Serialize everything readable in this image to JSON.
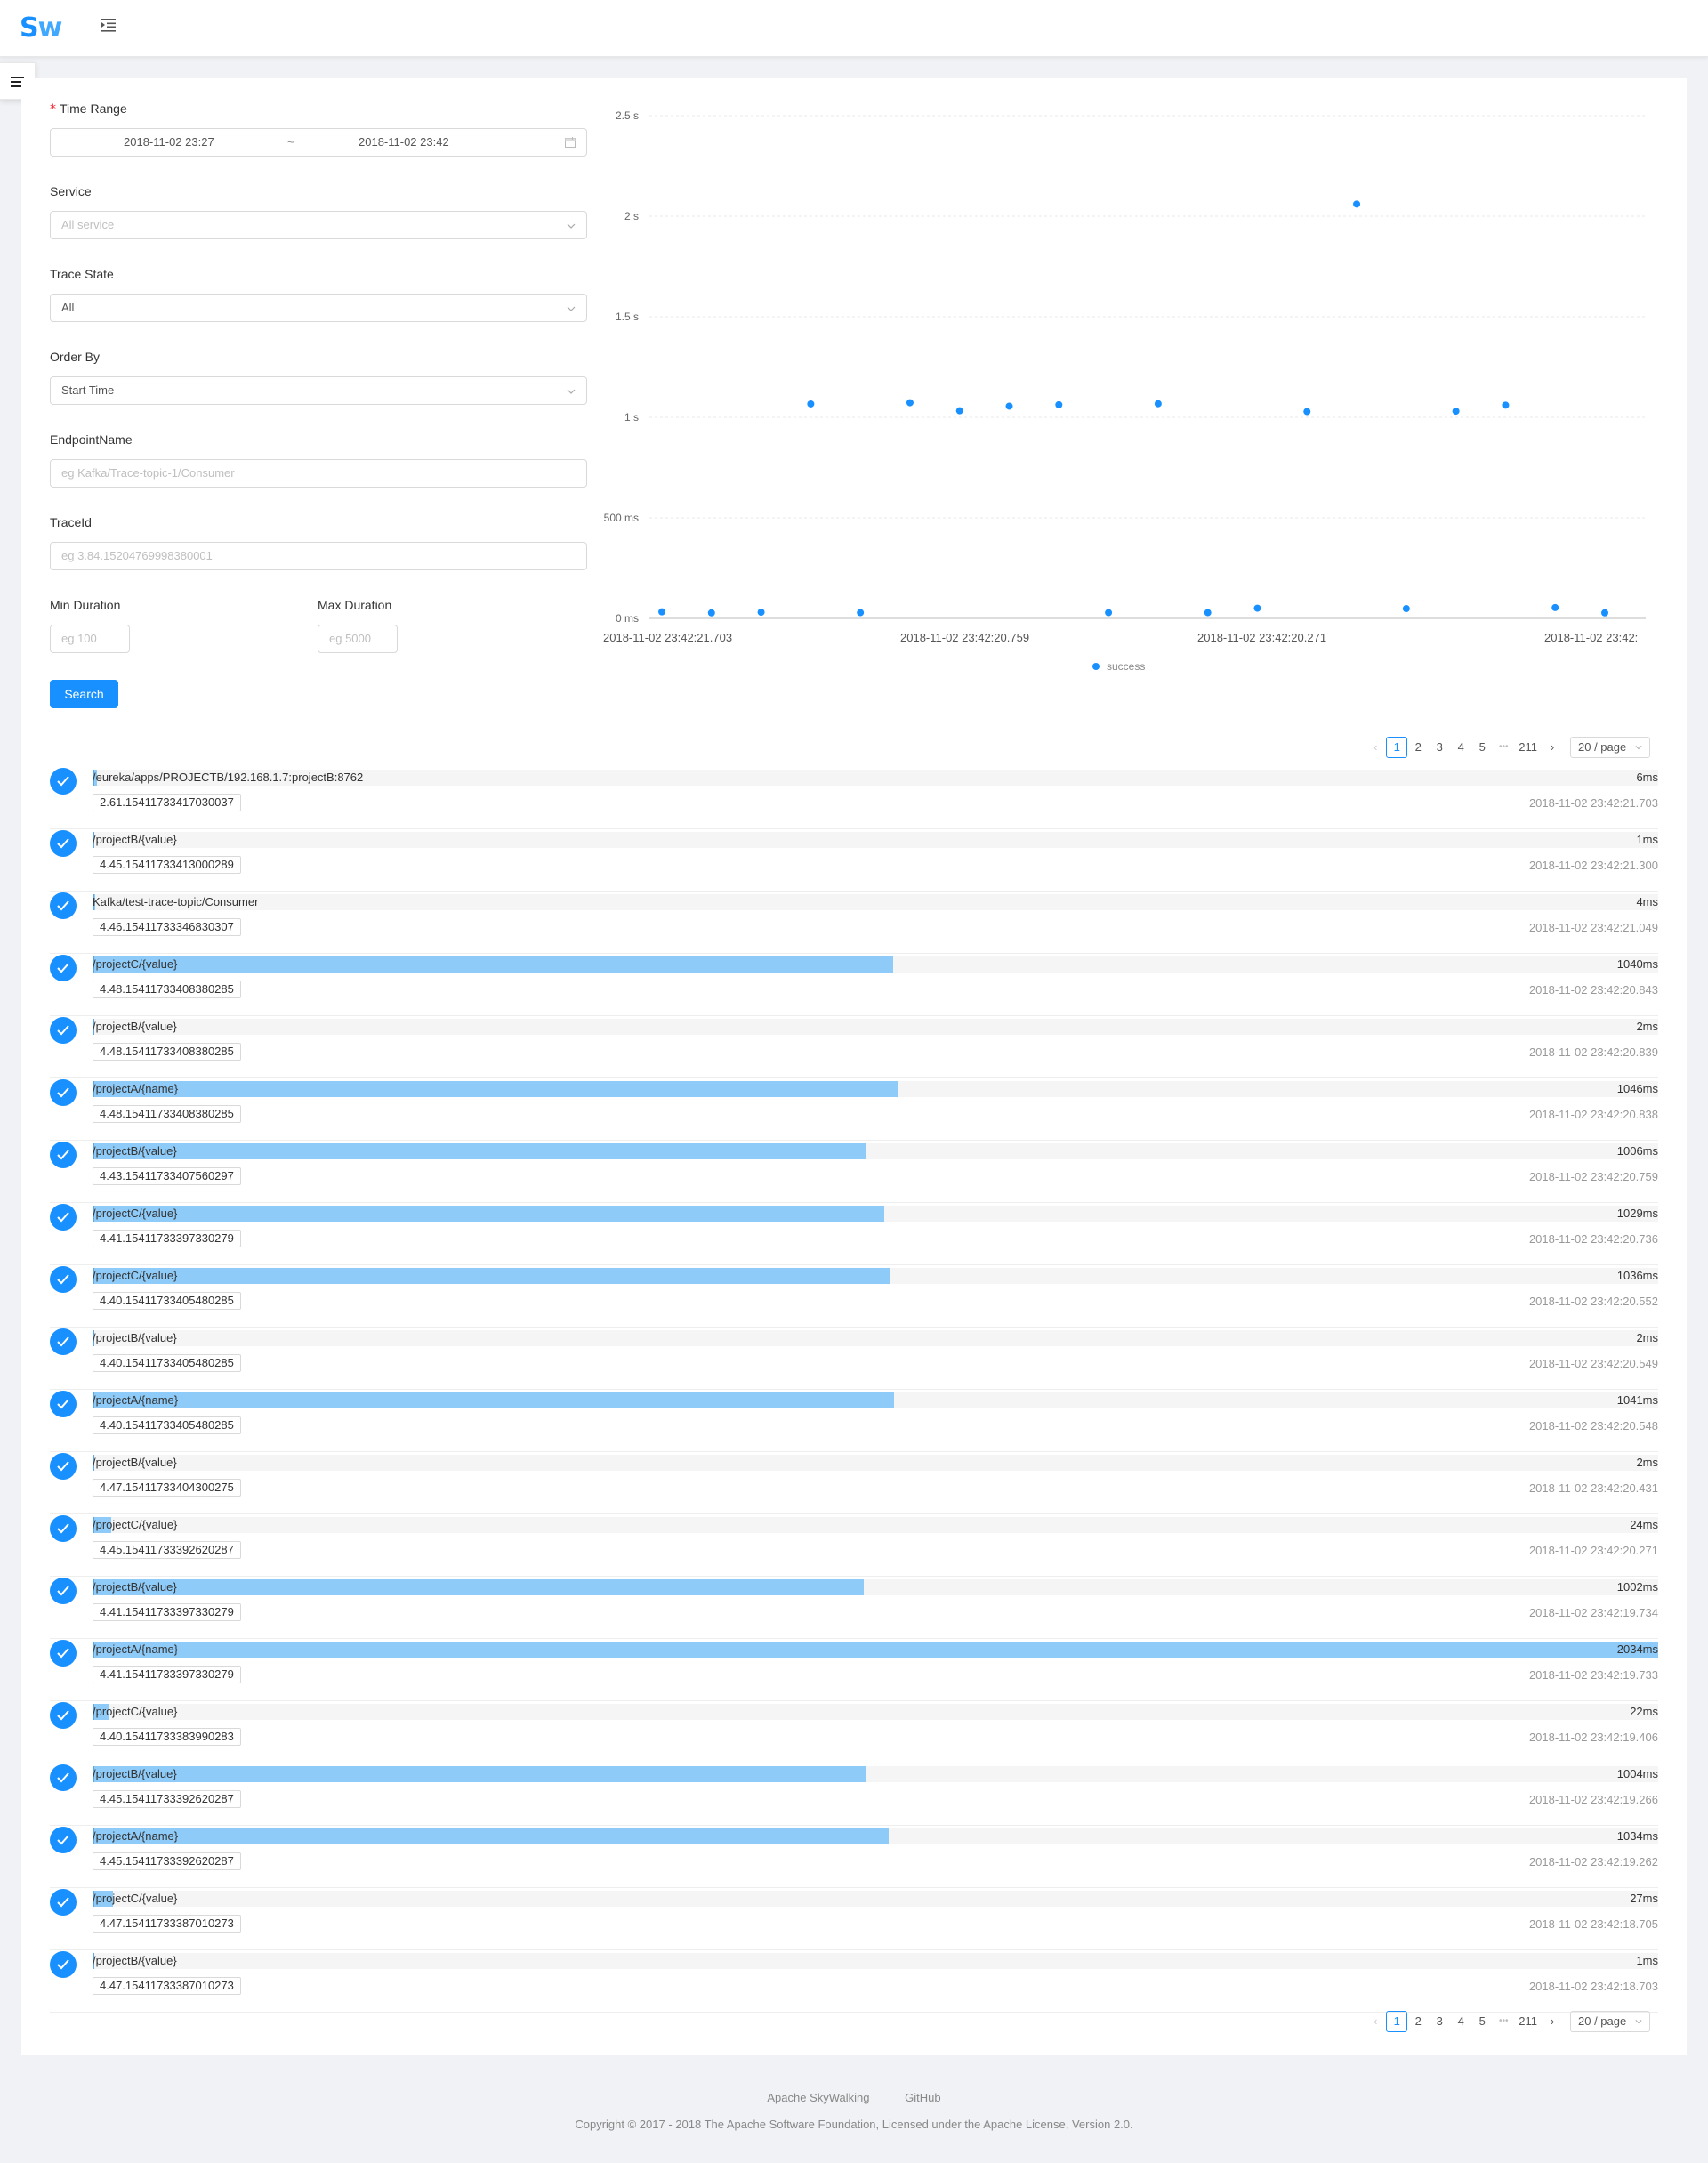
{
  "header": {
    "logo_main": "S",
    "logo_accent": "w"
  },
  "form": {
    "time_range": {
      "label": "Time Range",
      "required_mark": "*",
      "start": "2018-11-02 23:27",
      "separator": "~",
      "end": "2018-11-02 23:42"
    },
    "service": {
      "label": "Service",
      "placeholder": "All service"
    },
    "trace_state": {
      "label": "Trace State",
      "value": "All"
    },
    "order_by": {
      "label": "Order By",
      "value": "Start Time"
    },
    "endpoint": {
      "label": "EndpointName",
      "placeholder": "eg Kafka/Trace-topic-1/Consumer"
    },
    "trace_id": {
      "label": "TraceId",
      "placeholder": "eg 3.84.15204769998380001"
    },
    "min_duration": {
      "label": "Min Duration",
      "placeholder": "eg 100"
    },
    "max_duration": {
      "label": "Max Duration",
      "placeholder": "eg 5000"
    },
    "search_label": "Search"
  },
  "chart_data": {
    "type": "scatter",
    "y_ticks": [
      "2.5 s",
      "2 s",
      "1.5 s",
      "1 s",
      "500 ms",
      "0 ms"
    ],
    "ylim": [
      0,
      2500
    ],
    "x_ticks": [
      "2018-11-02 23:42:21.703",
      "2018-11-02 23:42:20.759",
      "2018-11-02 23:42:20.271",
      "2018-11-02 23:42:"
    ],
    "legend": "success",
    "color": "#1890ff",
    "series": [
      {
        "values": [
          6,
          1,
          4,
          1040,
          2,
          1046,
          1006,
          1029,
          1036,
          2,
          1041,
          2,
          24,
          1002,
          2034,
          22,
          1004,
          1034,
          27,
          1
        ]
      }
    ]
  },
  "pagination": {
    "pages": [
      "1",
      "2",
      "3",
      "4",
      "5"
    ],
    "ellipsis": "•••",
    "last": "211",
    "page_size": "20 / page"
  },
  "traces": [
    {
      "endpoint": "/eureka/apps/PROJECTB/192.168.1.7:projectB:8762",
      "duration": "6ms",
      "duration_ms": 6,
      "trace_id": "2.61.15411733417030037",
      "start": "2018-11-02 23:42:21.703"
    },
    {
      "endpoint": "/projectB/{value}",
      "duration": "1ms",
      "duration_ms": 1,
      "trace_id": "4.45.15411733413000289",
      "start": "2018-11-02 23:42:21.300"
    },
    {
      "endpoint": "Kafka/test-trace-topic/Consumer",
      "duration": "4ms",
      "duration_ms": 4,
      "trace_id": "4.46.15411733346830307",
      "start": "2018-11-02 23:42:21.049"
    },
    {
      "endpoint": "/projectC/{value}",
      "duration": "1040ms",
      "duration_ms": 1040,
      "trace_id": "4.48.15411733408380285",
      "start": "2018-11-02 23:42:20.843"
    },
    {
      "endpoint": "/projectB/{value}",
      "duration": "2ms",
      "duration_ms": 2,
      "trace_id": "4.48.15411733408380285",
      "start": "2018-11-02 23:42:20.839"
    },
    {
      "endpoint": "/projectA/{name}",
      "duration": "1046ms",
      "duration_ms": 1046,
      "trace_id": "4.48.15411733408380285",
      "start": "2018-11-02 23:42:20.838"
    },
    {
      "endpoint": "/projectB/{value}",
      "duration": "1006ms",
      "duration_ms": 1006,
      "trace_id": "4.43.15411733407560297",
      "start": "2018-11-02 23:42:20.759"
    },
    {
      "endpoint": "/projectC/{value}",
      "duration": "1029ms",
      "duration_ms": 1029,
      "trace_id": "4.41.15411733397330279",
      "start": "2018-11-02 23:42:20.736"
    },
    {
      "endpoint": "/projectC/{value}",
      "duration": "1036ms",
      "duration_ms": 1036,
      "trace_id": "4.40.15411733405480285",
      "start": "2018-11-02 23:42:20.552"
    },
    {
      "endpoint": "/projectB/{value}",
      "duration": "2ms",
      "duration_ms": 2,
      "trace_id": "4.40.15411733405480285",
      "start": "2018-11-02 23:42:20.549"
    },
    {
      "endpoint": "/projectA/{name}",
      "duration": "1041ms",
      "duration_ms": 1041,
      "trace_id": "4.40.15411733405480285",
      "start": "2018-11-02 23:42:20.548"
    },
    {
      "endpoint": "/projectB/{value}",
      "duration": "2ms",
      "duration_ms": 2,
      "trace_id": "4.47.15411733404300275",
      "start": "2018-11-02 23:42:20.431"
    },
    {
      "endpoint": "/projectC/{value}",
      "duration": "24ms",
      "duration_ms": 24,
      "trace_id": "4.45.15411733392620287",
      "start": "2018-11-02 23:42:20.271"
    },
    {
      "endpoint": "/projectB/{value}",
      "duration": "1002ms",
      "duration_ms": 1002,
      "trace_id": "4.41.15411733397330279",
      "start": "2018-11-02 23:42:19.734"
    },
    {
      "endpoint": "/projectA/{name}",
      "duration": "2034ms",
      "duration_ms": 2034,
      "trace_id": "4.41.15411733397330279",
      "start": "2018-11-02 23:42:19.733"
    },
    {
      "endpoint": "/projectC/{value}",
      "duration": "22ms",
      "duration_ms": 22,
      "trace_id": "4.40.15411733383990283",
      "start": "2018-11-02 23:42:19.406"
    },
    {
      "endpoint": "/projectB/{value}",
      "duration": "1004ms",
      "duration_ms": 1004,
      "trace_id": "4.45.15411733392620287",
      "start": "2018-11-02 23:42:19.266"
    },
    {
      "endpoint": "/projectA/{name}",
      "duration": "1034ms",
      "duration_ms": 1034,
      "trace_id": "4.45.15411733392620287",
      "start": "2018-11-02 23:42:19.262"
    },
    {
      "endpoint": "/projectC/{value}",
      "duration": "27ms",
      "duration_ms": 27,
      "trace_id": "4.47.15411733387010273",
      "start": "2018-11-02 23:42:18.705"
    },
    {
      "endpoint": "/projectB/{value}",
      "duration": "1ms",
      "duration_ms": 1,
      "trace_id": "4.47.15411733387010273",
      "start": "2018-11-02 23:42:18.703"
    }
  ],
  "footer": {
    "link_skywalking": "Apache SkyWalking",
    "link_github": "GitHub",
    "copyright": "Copyright © 2017 - 2018 The Apache Software Foundation, Licensed under the Apache License, Version 2.0."
  }
}
